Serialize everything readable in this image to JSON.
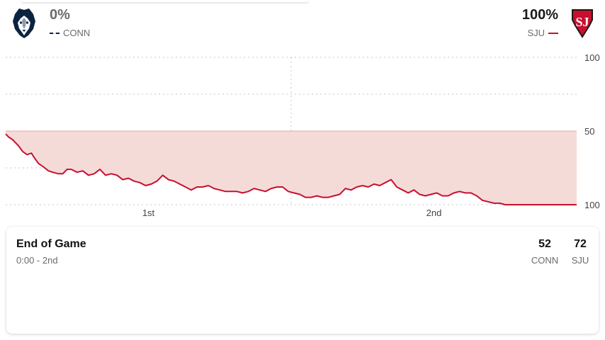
{
  "teams": {
    "away": {
      "abbr": "CONN",
      "pct": "0%",
      "logo": "huskies-logo",
      "color": "#0c2340"
    },
    "home": {
      "abbr": "SJU",
      "pct": "100%",
      "logo": "sju-logo",
      "color": "#c8102e"
    }
  },
  "chart_data": {
    "type": "area",
    "title": "",
    "xlabel": "",
    "ylabel": "",
    "y_tick_labels": [
      {
        "value": 100,
        "label": "100"
      },
      {
        "value": 50,
        "label": "50"
      },
      {
        "value": 0,
        "label": "100"
      }
    ],
    "x_period_labels": [
      "1st",
      "2nd"
    ],
    "ylim": [
      0,
      100
    ],
    "xlim": [
      0,
      40
    ],
    "halftime_x": 20,
    "grid": true,
    "series": [
      {
        "color": "#c8102e",
        "fill": "#f5dbd8",
        "x": [
          0,
          0.2,
          0.5,
          0.9,
          1.2,
          1.5,
          1.8,
          2.0,
          2.3,
          2.6,
          3.0,
          3.3,
          3.7,
          4.0,
          4.3,
          4.6,
          5.0,
          5.4,
          5.8,
          6.2,
          6.6,
          7.0,
          7.4,
          7.8,
          8.2,
          8.6,
          9.0,
          9.4,
          9.8,
          10.2,
          10.6,
          11.0,
          11.4,
          11.8,
          12.2,
          12.6,
          13.0,
          13.4,
          13.8,
          14.2,
          14.6,
          15.0,
          15.4,
          15.8,
          16.2,
          16.6,
          17.0,
          17.4,
          17.8,
          18.2,
          18.6,
          19.0,
          19.4,
          19.8,
          20.2,
          20.6,
          21.0,
          21.4,
          21.8,
          22.2,
          22.6,
          23.0,
          23.4,
          23.8,
          24.2,
          24.6,
          25.0,
          25.4,
          25.8,
          26.2,
          26.6,
          27.0,
          27.4,
          27.8,
          28.2,
          28.6,
          29.0,
          29.4,
          29.8,
          30.2,
          30.6,
          31.0,
          31.4,
          31.8,
          32.2,
          32.6,
          33.0,
          33.4,
          33.8,
          34.2,
          34.6,
          35.0,
          35.4,
          35.8,
          36.2,
          36.6,
          37.0,
          37.4,
          37.8,
          38.2,
          38.6,
          39.0,
          39.4,
          40.0
        ],
        "y": [
          48,
          46,
          44,
          40,
          36,
          34,
          35,
          32,
          28,
          26,
          23,
          22,
          21,
          21,
          24,
          24,
          22,
          23,
          20,
          21,
          24,
          20,
          21,
          20,
          17,
          18,
          16,
          15,
          13,
          14,
          16,
          20,
          17,
          16,
          14,
          12,
          10,
          12,
          12,
          13,
          11,
          10,
          9,
          9,
          9,
          8,
          9,
          11,
          10,
          9,
          11,
          12,
          12,
          9,
          8,
          7,
          5,
          5,
          6,
          5,
          5,
          6,
          7,
          11,
          10,
          12,
          13,
          12,
          14,
          13,
          15,
          17,
          12,
          10,
          8,
          10,
          7,
          6,
          7,
          8,
          6,
          6,
          8,
          9,
          8,
          8,
          6,
          3,
          2,
          1,
          1,
          0,
          0,
          0,
          0,
          0,
          0,
          0,
          0,
          0,
          0,
          0,
          0,
          0
        ]
      }
    ]
  },
  "game": {
    "status": "End of Game",
    "clock": "0:00 - 2nd",
    "score_away": "52",
    "score_home": "72"
  }
}
